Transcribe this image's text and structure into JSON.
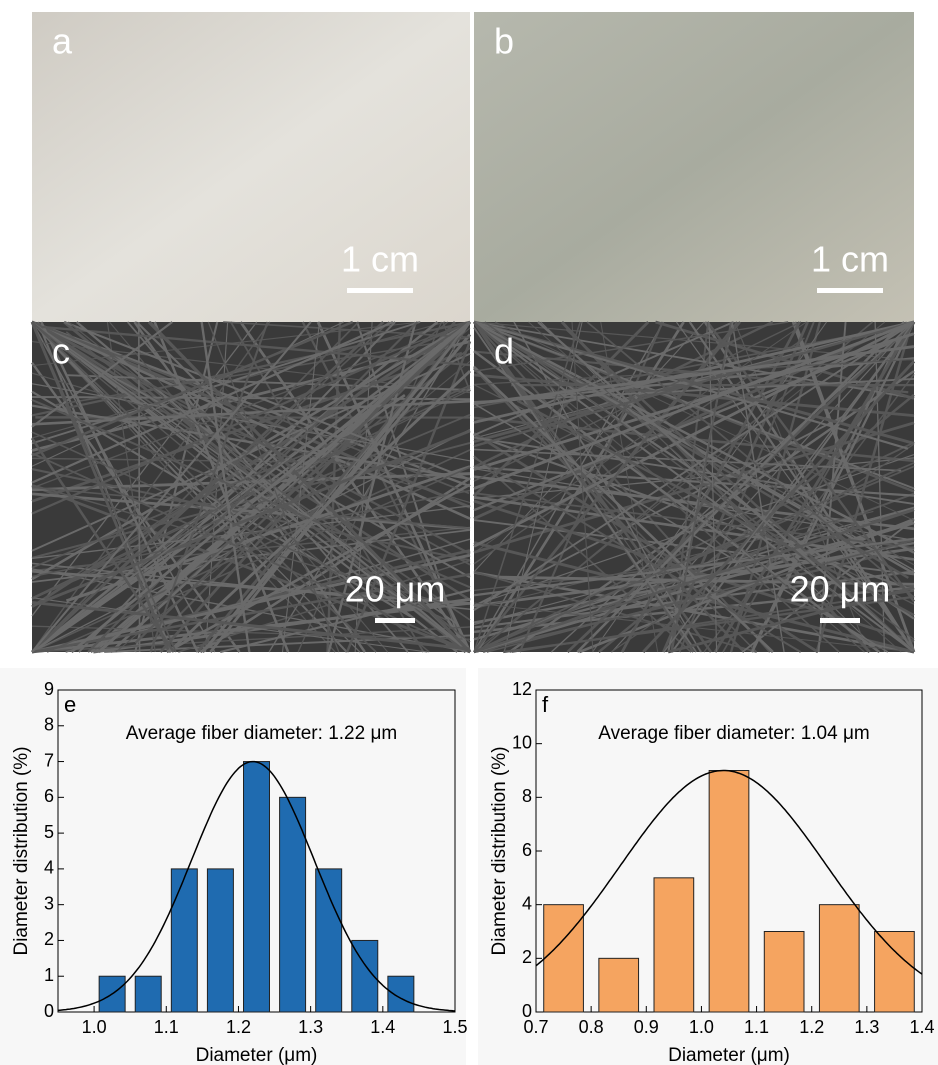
{
  "panels": [
    {
      "label": "a",
      "scale": "1 cm"
    },
    {
      "label": "b",
      "scale": "1 cm"
    },
    {
      "label": "c",
      "scale": "20 μm"
    },
    {
      "label": "d",
      "scale": "20 μm"
    }
  ],
  "chart_data": [
    {
      "type": "bar",
      "panel": "e",
      "annotation": "Average fiber diameter: 1.22 μm",
      "x_label": "Diameter (μm)",
      "y_label": "Diameter distribution (%)",
      "x": [
        1.025,
        1.075,
        1.125,
        1.175,
        1.225,
        1.275,
        1.325,
        1.375,
        1.425
      ],
      "values": [
        1,
        1,
        4,
        4,
        7,
        6,
        4,
        2,
        1
      ],
      "color": "#1f6bb0",
      "fit": {
        "mean": 1.22,
        "sigma": 0.085,
        "peak": 7
      },
      "xlim": [
        0.95,
        1.5
      ],
      "xticks": [
        {
          "value": 1,
          "label": "1.0"
        },
        1.1,
        1.2,
        1.3,
        1.4,
        1.5
      ],
      "ylim": [
        0,
        9
      ],
      "yticks": [
        0,
        1,
        2,
        3,
        4,
        5,
        6,
        7,
        8,
        9
      ]
    },
    {
      "type": "bar",
      "panel": "f",
      "annotation": "Average fiber diameter: 1.04 μm",
      "x_label": "Diameter (μm)",
      "y_label": "Diameter distribution (%)",
      "x": [
        0.75,
        0.85,
        0.95,
        1.05,
        1.15,
        1.25,
        1.35
      ],
      "values": [
        4,
        2,
        5,
        9,
        3,
        4,
        3
      ],
      "color": "#f5a460",
      "fit": {
        "mean": 1.04,
        "sigma": 0.187,
        "peak": 9
      },
      "xlim": [
        0.7,
        1.4
      ],
      "xticks": [
        0.7,
        0.8,
        0.9,
        {
          "value": 1,
          "label": "1.0"
        },
        1.1,
        1.2,
        1.3,
        1.4
      ],
      "ylim": [
        0,
        12
      ],
      "yticks": [
        0,
        2,
        4,
        6,
        8,
        10,
        12
      ]
    }
  ]
}
